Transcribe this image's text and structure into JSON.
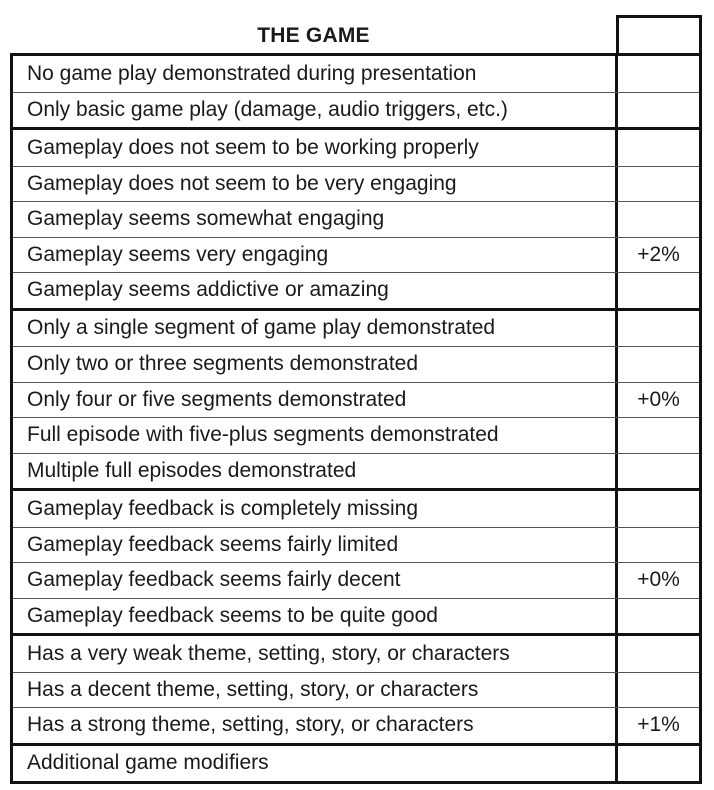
{
  "title": "THE GAME",
  "groups": [
    {
      "rows": [
        {
          "label": "No game play demonstrated during presentation",
          "value": ""
        },
        {
          "label": "Only basic game play (damage, audio triggers, etc.)",
          "value": ""
        }
      ]
    },
    {
      "rows": [
        {
          "label": "Gameplay does not seem to be working properly",
          "value": ""
        },
        {
          "label": "Gameplay does not seem to be very engaging",
          "value": ""
        },
        {
          "label": "Gameplay seems somewhat engaging",
          "value": ""
        },
        {
          "label": "Gameplay seems very engaging",
          "value": "+2%"
        },
        {
          "label": "Gameplay seems addictive or amazing",
          "value": ""
        }
      ]
    },
    {
      "rows": [
        {
          "label": "Only a single segment of game play demonstrated",
          "value": ""
        },
        {
          "label": "Only two or three segments demonstrated",
          "value": ""
        },
        {
          "label": "Only four or five segments demonstrated",
          "value": "+0%"
        },
        {
          "label": "Full episode with five-plus segments demonstrated",
          "value": ""
        },
        {
          "label": "Multiple full episodes demonstrated",
          "value": ""
        }
      ]
    },
    {
      "rows": [
        {
          "label": "Gameplay feedback is completely missing",
          "value": ""
        },
        {
          "label": "Gameplay feedback seems fairly limited",
          "value": ""
        },
        {
          "label": "Gameplay feedback seems fairly decent",
          "value": "+0%"
        },
        {
          "label": "Gameplay feedback seems to be quite good",
          "value": ""
        }
      ]
    },
    {
      "rows": [
        {
          "label": "Has a very weak theme, setting, story, or characters",
          "value": ""
        },
        {
          "label": "Has a decent theme, setting, story, or characters",
          "value": ""
        },
        {
          "label": "Has a strong theme, setting, story, or characters",
          "value": "+1%"
        }
      ]
    },
    {
      "rows": [
        {
          "label": "Additional game modifiers",
          "value": ""
        }
      ]
    }
  ]
}
